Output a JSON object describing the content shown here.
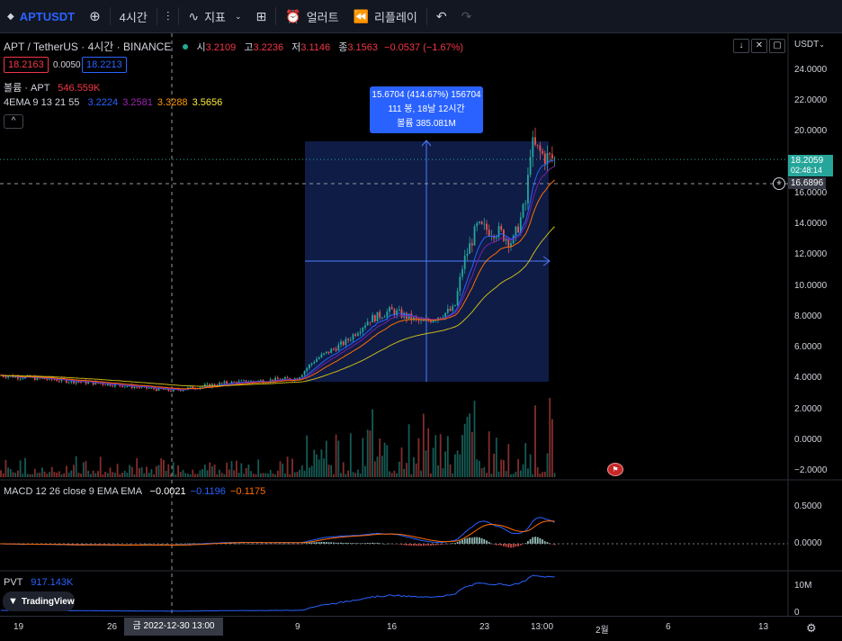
{
  "toolbar": {
    "symbol": "APTUSDT",
    "interval": "4시간",
    "indicators_label": "지표",
    "alert_label": "얼러트",
    "replay_label": "리플레이"
  },
  "legend": {
    "title": "APT / TetherUS · 4시간 · BINANCE",
    "open_k": "시",
    "open_v": "3.2109",
    "high_k": "고",
    "high_v": "3.2236",
    "low_k": "저",
    "low_v": "3.1146",
    "close_k": "종",
    "close_v": "3.1563",
    "change": "−0.0537 (−1.67%)",
    "sell_price": "18.2163",
    "spread": "0.0050",
    "buy_price": "18.2213",
    "volume_label": "볼륨 · APT",
    "volume_value": "546.559K",
    "ema_label": "4EMA 9 13 21 55",
    "ema_v1": "3.2224",
    "ema_v2": "3.2581",
    "ema_v3": "3.3288",
    "ema_v4": "3.5656",
    "collapse": "^"
  },
  "measure": {
    "line1": "15.6704 (414.67%) 156704",
    "line2": "111 봉, 18날 12시간",
    "line3": "볼륨 385.081M"
  },
  "price_axis": {
    "currency": "USDT",
    "ticks": [
      "24.0000",
      "22.0000",
      "20.0000",
      "18.0000",
      "16.0000",
      "14.0000",
      "12.0000",
      "10.0000",
      "8.0000",
      "6.0000",
      "4.0000",
      "2.0000",
      "0.0000",
      "−2.0000"
    ],
    "last_price": "18.2059",
    "countdown": "02:48:14",
    "crosshair_price": "16.6896"
  },
  "macd": {
    "label": "MACD 12 26 close 9 EMA EMA",
    "v1": "−0.0021",
    "v2": "−0.1196",
    "v3": "−0.1175",
    "ticks": [
      "0.5000",
      "0.0000"
    ]
  },
  "pvt": {
    "label": "PVT",
    "value": "917.143K",
    "ticks": [
      "10M",
      "0"
    ]
  },
  "time_axis": {
    "labels": [
      "19",
      "26",
      "9",
      "16",
      "23",
      "13:00",
      "2월",
      "6",
      "13"
    ],
    "crosshair_date": "금 2022-12-30   13:00"
  },
  "brand": "TradingView",
  "colors": {
    "up": "#26a69a",
    "down": "#ef5350",
    "accent": "#2962ff",
    "macd_line": "#2962ff",
    "signal_line": "#ff6d00",
    "ema1": "#2962ff",
    "ema2": "#7b1fa2",
    "ema3": "#ff6d00",
    "ema4": "#c9b81a"
  },
  "chart_data": {
    "type": "candlestick",
    "symbol": "APT / TetherUS",
    "interval": "4시간",
    "exchange": "BINANCE",
    "ylim": [
      -2,
      24
    ],
    "y_ticks": [
      24,
      22,
      20,
      18,
      16,
      14,
      12,
      10,
      8,
      6,
      4,
      2,
      0,
      -2
    ],
    "price_path": [
      {
        "date": "12-19",
        "price": 4.2
      },
      {
        "date": "12-26",
        "price": 3.6
      },
      {
        "date": "12-30",
        "price": 3.2
      },
      {
        "date": "01-02",
        "price": 3.7
      },
      {
        "date": "01-08",
        "price": 4.0
      },
      {
        "date": "01-10",
        "price": 5.2
      },
      {
        "date": "01-12",
        "price": 6.4
      },
      {
        "date": "01-14",
        "price": 7.8
      },
      {
        "date": "01-16",
        "price": 8.4
      },
      {
        "date": "01-18",
        "price": 7.6
      },
      {
        "date": "01-20",
        "price": 8.5
      },
      {
        "date": "01-21",
        "price": 11.5
      },
      {
        "date": "01-22",
        "price": 13.8
      },
      {
        "date": "01-24",
        "price": 13.5
      },
      {
        "date": "01-25",
        "price": 12.8
      },
      {
        "date": "01-26",
        "price": 15.5
      },
      {
        "date": "01-27",
        "price": 19.2
      },
      {
        "date": "01-28",
        "price": 18.4
      },
      {
        "date": "01-29",
        "price": 18.2
      }
    ],
    "last_price": 18.2059,
    "measured_change": 15.6704,
    "measured_change_pct": 414.67
  }
}
